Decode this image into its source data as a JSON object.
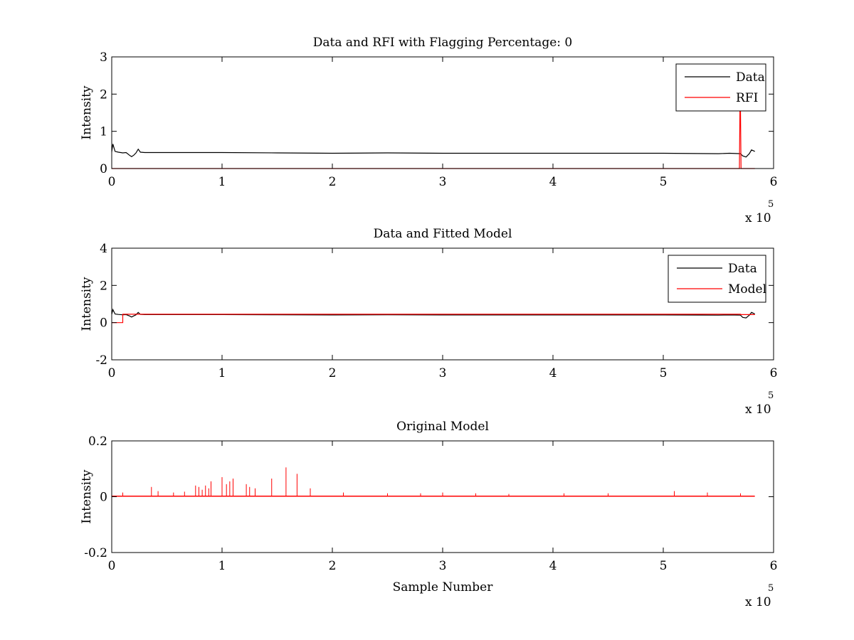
{
  "figure": {
    "background": "#ffffff"
  },
  "colors": {
    "data": "#000000",
    "rfi": "#ff0000",
    "model": "#ff0000",
    "axis": "#000000"
  },
  "chart_data": [
    {
      "type": "line",
      "title": "Data and RFI with Flagging Percentage: 0",
      "xlabel": "",
      "ylabel": "Intensity",
      "xlim": [
        0,
        6
      ],
      "ylim": [
        0,
        3
      ],
      "x_multiplier": "x 10",
      "x_multiplier_exp": "5",
      "xticks": [
        "0",
        "1",
        "2",
        "3",
        "4",
        "5",
        "6"
      ],
      "yticks": [
        "0",
        "1",
        "2",
        "3"
      ],
      "legend": {
        "position": "top-right",
        "entries": [
          "Data",
          "RFI"
        ]
      },
      "series": [
        {
          "name": "Data",
          "color": "#000000",
          "x": [
            0.0,
            0.01,
            0.03,
            0.06,
            0.1,
            0.13,
            0.16,
            0.18,
            0.2,
            0.22,
            0.24,
            0.26,
            0.3,
            0.5,
            1.0,
            1.5,
            2.0,
            2.5,
            3.0,
            3.5,
            4.0,
            4.5,
            5.0,
            5.5,
            5.6,
            5.7,
            5.72,
            5.75,
            5.78,
            5.8,
            5.83
          ],
          "y": [
            0.45,
            0.66,
            0.46,
            0.44,
            0.42,
            0.43,
            0.36,
            0.32,
            0.36,
            0.42,
            0.52,
            0.44,
            0.43,
            0.43,
            0.43,
            0.42,
            0.41,
            0.42,
            0.41,
            0.41,
            0.41,
            0.41,
            0.41,
            0.4,
            0.41,
            0.4,
            0.34,
            0.31,
            0.4,
            0.5,
            0.46
          ]
        },
        {
          "name": "RFI",
          "color": "#ff0000",
          "x": [
            0.0,
            5.69,
            5.695,
            5.7,
            5.705,
            5.83
          ],
          "y": [
            0.0,
            0.0,
            1.55,
            1.55,
            0.0,
            0.0
          ]
        }
      ]
    },
    {
      "type": "line",
      "title": "Data and Fitted Model",
      "xlabel": "",
      "ylabel": "Intensity",
      "xlim": [
        0,
        6
      ],
      "ylim": [
        -2,
        4
      ],
      "x_multiplier": "x 10",
      "x_multiplier_exp": "5",
      "xticks": [
        "0",
        "1",
        "2",
        "3",
        "4",
        "5",
        "6"
      ],
      "yticks": [
        "-2",
        "0",
        "2",
        "4"
      ],
      "legend": {
        "position": "top-right",
        "entries": [
          "Data",
          "Model"
        ]
      },
      "series": [
        {
          "name": "Data",
          "color": "#000000",
          "x": [
            0.0,
            0.01,
            0.03,
            0.06,
            0.1,
            0.13,
            0.16,
            0.18,
            0.2,
            0.22,
            0.24,
            0.26,
            0.3,
            0.5,
            1.0,
            1.5,
            2.0,
            2.5,
            3.0,
            3.5,
            4.0,
            4.5,
            5.0,
            5.5,
            5.6,
            5.7,
            5.72,
            5.75,
            5.78,
            5.8,
            5.83
          ],
          "y": [
            0.45,
            0.7,
            0.46,
            0.44,
            0.42,
            0.43,
            0.36,
            0.3,
            0.36,
            0.42,
            0.55,
            0.44,
            0.43,
            0.43,
            0.43,
            0.42,
            0.41,
            0.42,
            0.41,
            0.41,
            0.41,
            0.41,
            0.41,
            0.4,
            0.41,
            0.4,
            0.28,
            0.25,
            0.4,
            0.55,
            0.46
          ]
        },
        {
          "name": "Model",
          "color": "#ff0000",
          "x": [
            0.0,
            0.1,
            0.1,
            5.7,
            5.7,
            5.83
          ],
          "y": [
            0.0,
            0.0,
            0.45,
            0.45,
            0.43,
            0.43
          ]
        }
      ]
    },
    {
      "type": "line",
      "title": "Original Model",
      "xlabel": "Sample Number",
      "ylabel": "Intensity",
      "xlim": [
        0,
        6
      ],
      "ylim": [
        -0.2,
        0.2
      ],
      "x_multiplier": "x 10",
      "x_multiplier_exp": "5",
      "xticks": [
        "0",
        "1",
        "2",
        "3",
        "4",
        "5",
        "6"
      ],
      "yticks": [
        "-0.2",
        "0",
        "0.2"
      ],
      "legend": null,
      "baseline": 0.002,
      "baseline_x": [
        0.0,
        5.83
      ],
      "spikes": {
        "color": "#ff0000",
        "x": [
          0.1,
          0.36,
          0.42,
          0.56,
          0.66,
          0.76,
          0.79,
          0.82,
          0.85,
          0.88,
          0.9,
          1.0,
          1.04,
          1.07,
          1.1,
          1.22,
          1.25,
          1.3,
          1.45,
          1.58,
          1.68,
          1.8,
          2.1,
          2.5,
          2.8,
          3.0,
          3.3,
          3.6,
          4.1,
          4.5,
          5.1,
          5.4,
          5.7
        ],
        "y": [
          0.015,
          0.035,
          0.02,
          0.015,
          0.018,
          0.04,
          0.035,
          0.025,
          0.04,
          0.03,
          0.055,
          0.07,
          0.045,
          0.055,
          0.065,
          0.045,
          0.035,
          0.03,
          0.065,
          0.105,
          0.082,
          0.03,
          0.015,
          0.012,
          0.012,
          0.015,
          0.012,
          0.01,
          0.012,
          0.012,
          0.02,
          0.015,
          0.012
        ]
      }
    }
  ]
}
